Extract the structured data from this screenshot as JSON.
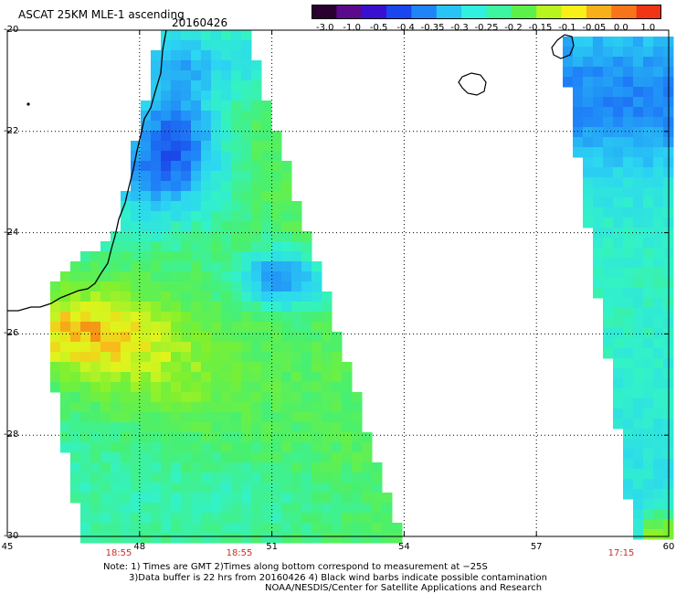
{
  "title": "ASCAT 25KM MLE-1 ascending",
  "date": "20160426",
  "colorbar": {
    "colors": [
      "#2a0030",
      "#5a0a8a",
      "#3a10d0",
      "#1a46f0",
      "#1f84f8",
      "#28c4f6",
      "#30f0e0",
      "#3cf6a0",
      "#5cf04a",
      "#b8f41e",
      "#f8f018",
      "#f8b01a",
      "#f8741a",
      "#f03416"
    ],
    "ticks": [
      "-3.0",
      "-1.0",
      "-0.5",
      "-0.4",
      "-0.35",
      "-0.3",
      "-0.25",
      "-0.2",
      "-0.15",
      "-0.1",
      "-0.05",
      "0.0",
      "1.0"
    ]
  },
  "axes": {
    "y_ticks": [
      "-20",
      "-22",
      "-24",
      "-26",
      "-28",
      "-30"
    ],
    "x_ticks": [
      "45",
      "48",
      "51",
      "54",
      "57",
      "60"
    ]
  },
  "time_labels": [
    "18:55",
    "18:55",
    "17:15"
  ],
  "notes": {
    "line1": "Note: 1) Times are GMT 2)Times along bottom correspond to measurement at −25S",
    "line2": "3)Data buffer is 22 hrs from 20160426 4) Black wind barbs indicate possible contamination",
    "line3": "NOAA/NESDIS/Center for Satellite Applications and Research"
  }
}
